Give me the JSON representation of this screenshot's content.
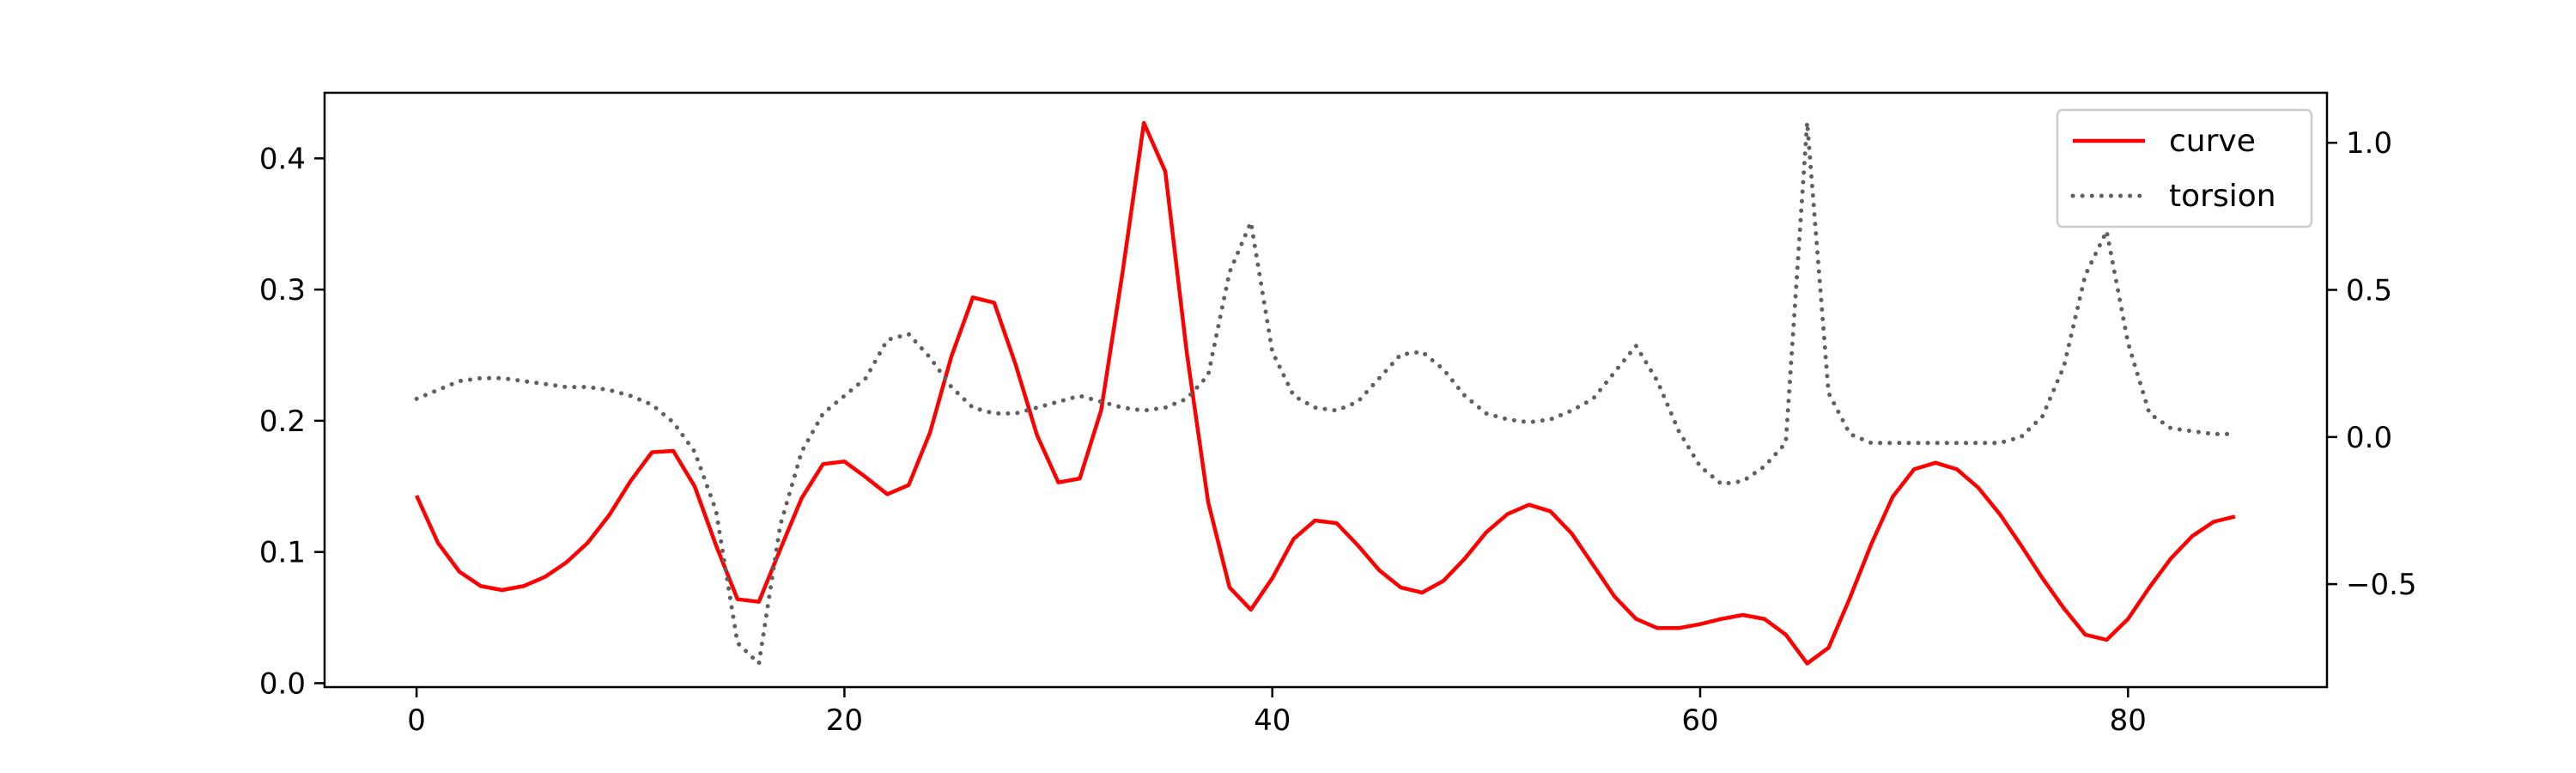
{
  "chart_data": {
    "type": "line",
    "title": "",
    "xlabel": "",
    "ylabel": "",
    "y2label": "",
    "xlim": [
      -4.3,
      89.3
    ],
    "ylim": [
      -0.003,
      0.45
    ],
    "y2lim": [
      -0.85,
      1.17
    ],
    "x_ticks": [
      0,
      20,
      40,
      60,
      80
    ],
    "y_ticks": [
      0.0,
      0.1,
      0.2,
      0.3,
      0.4
    ],
    "y_tick_labels": [
      "0.0",
      "0.1",
      "0.2",
      "0.3",
      "0.4"
    ],
    "y2_ticks": [
      -0.5,
      0.0,
      0.5,
      1.0
    ],
    "y2_tick_labels": [
      "−0.5",
      "0.0",
      "0.5",
      "1.0"
    ],
    "grid": false,
    "legend_position": "top-right",
    "x": [
      0,
      1,
      2,
      3,
      4,
      5,
      6,
      7,
      8,
      9,
      10,
      11,
      12,
      13,
      14,
      15,
      16,
      17,
      18,
      19,
      20,
      21,
      22,
      23,
      24,
      25,
      26,
      27,
      28,
      29,
      30,
      31,
      32,
      33,
      34,
      35,
      36,
      37,
      38,
      39,
      40,
      41,
      42,
      43,
      44,
      45,
      46,
      47,
      48,
      49,
      50,
      51,
      52,
      53,
      54,
      55,
      56,
      57,
      58,
      59,
      60,
      61,
      62,
      63,
      64,
      65,
      66,
      67,
      68,
      69,
      70,
      71,
      72,
      73,
      74,
      75,
      76,
      77,
      78,
      79,
      80,
      81,
      82,
      83,
      84,
      85
    ],
    "series": [
      {
        "name": "curve",
        "axis": "left",
        "color": "#ff0000",
        "style": "solid",
        "values": [
          0.143,
          0.107,
          0.085,
          0.074,
          0.071,
          0.074,
          0.081,
          0.092,
          0.107,
          0.128,
          0.154,
          0.176,
          0.177,
          0.15,
          0.105,
          0.064,
          0.062,
          0.102,
          0.141,
          0.167,
          0.169,
          0.157,
          0.144,
          0.151,
          0.191,
          0.249,
          0.294,
          0.29,
          0.243,
          0.189,
          0.153,
          0.156,
          0.208,
          0.313,
          0.427,
          0.39,
          0.252,
          0.138,
          0.073,
          0.056,
          0.08,
          0.11,
          0.124,
          0.122,
          0.105,
          0.086,
          0.073,
          0.069,
          0.078,
          0.095,
          0.115,
          0.129,
          0.136,
          0.131,
          0.114,
          0.09,
          0.066,
          0.049,
          0.042,
          0.042,
          0.045,
          0.049,
          0.052,
          0.049,
          0.037,
          0.015,
          0.027,
          0.065,
          0.106,
          0.142,
          0.163,
          0.168,
          0.163,
          0.149,
          0.129,
          0.105,
          0.08,
          0.057,
          0.037,
          0.033,
          0.049,
          0.073,
          0.095,
          0.112,
          0.123,
          0.127
        ]
      },
      {
        "name": "torsion",
        "axis": "right",
        "color": "#606060",
        "style": "dotted",
        "values": [
          0.13,
          0.16,
          0.19,
          0.2,
          0.2,
          0.19,
          0.18,
          0.17,
          0.17,
          0.16,
          0.14,
          0.11,
          0.05,
          -0.05,
          -0.25,
          -0.7,
          -0.77,
          -0.3,
          -0.05,
          0.08,
          0.14,
          0.2,
          0.33,
          0.35,
          0.27,
          0.17,
          0.1,
          0.08,
          0.08,
          0.1,
          0.12,
          0.14,
          0.12,
          0.1,
          0.09,
          0.1,
          0.13,
          0.21,
          0.56,
          0.73,
          0.29,
          0.14,
          0.1,
          0.09,
          0.12,
          0.2,
          0.28,
          0.29,
          0.23,
          0.14,
          0.08,
          0.06,
          0.05,
          0.06,
          0.09,
          0.13,
          0.22,
          0.31,
          0.19,
          0.02,
          -0.1,
          -0.16,
          -0.15,
          -0.1,
          -0.02,
          1.07,
          0.15,
          0.01,
          -0.02,
          -0.02,
          -0.02,
          -0.02,
          -0.02,
          -0.02,
          -0.02,
          0.0,
          0.07,
          0.24,
          0.55,
          0.7,
          0.32,
          0.08,
          0.03,
          0.02,
          0.01,
          0.01
        ]
      }
    ]
  }
}
